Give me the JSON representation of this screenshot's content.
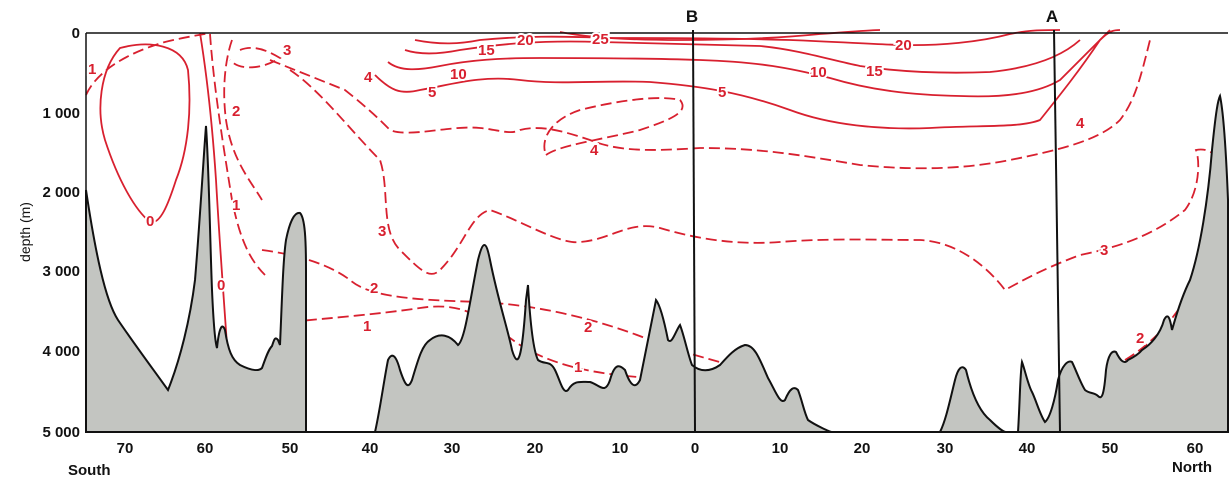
{
  "axes": {
    "y_title": "depth (m)",
    "y_ticks": [
      "0",
      "1 000",
      "2 000",
      "3 000",
      "4 000",
      "5 000"
    ],
    "x_ticks": [
      "70",
      "60",
      "50",
      "40",
      "30",
      "20",
      "10",
      "0",
      "10",
      "20",
      "30",
      "40",
      "50",
      "60"
    ],
    "south_label": "South",
    "north_label": "North"
  },
  "markers": [
    {
      "label": "B",
      "latitude": "0"
    },
    {
      "label": "A",
      "latitude": "43 N"
    }
  ],
  "isotherm_labels": [
    "1",
    "0",
    "2",
    "1",
    "0",
    "3",
    "4",
    "5",
    "10",
    "15",
    "20",
    "25",
    "20",
    "15",
    "10",
    "5",
    "4",
    "3",
    "2",
    "1",
    "4",
    "3",
    "2"
  ],
  "colors": {
    "isotherm": "#d8202f",
    "seabed": "#c3c5c1",
    "outline": "#111111"
  }
}
